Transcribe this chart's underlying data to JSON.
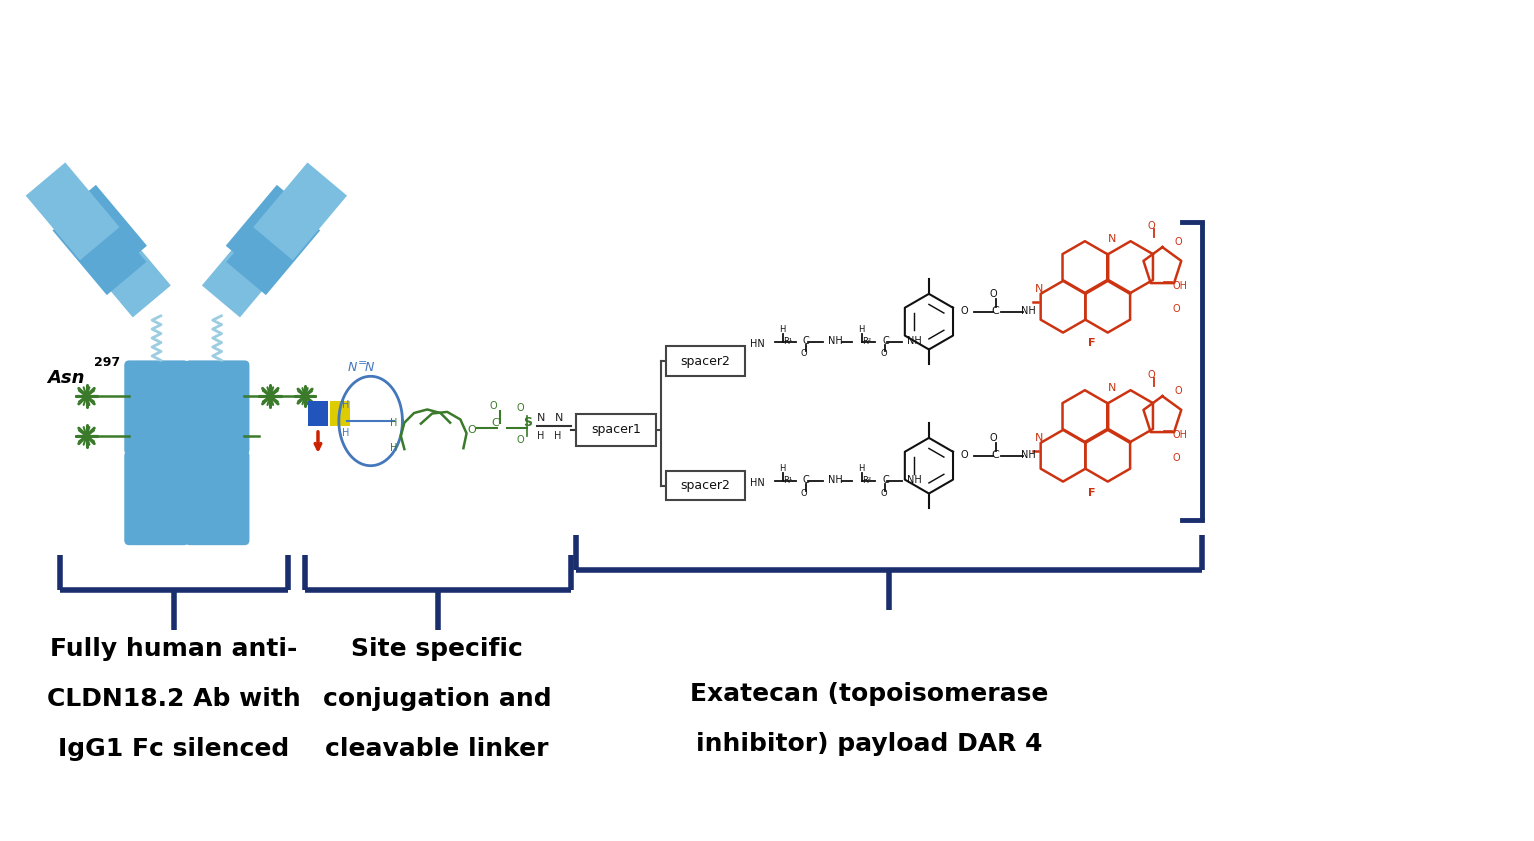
{
  "bg_color": "#ffffff",
  "fig_width": 15.34,
  "fig_height": 8.41,
  "dpi": 100,
  "ab_color": "#5ba8d4",
  "ab_color_dark": "#4a92be",
  "ab_color_light": "#7bbee0",
  "hinge_color": "#a8d4ea",
  "green_color": "#3a7a2a",
  "exc_color": "#cc3311",
  "bracket_color": "#1a2e6e",
  "blue_ring_color": "#4477bb",
  "label1_lines": [
    "Fully human anti-",
    "CLDN18.2 Ab with",
    "IgG1 Fc silenced"
  ],
  "label2_lines": [
    "Site specific",
    "conjugation and",
    "cleavable linker"
  ],
  "label3_lines": [
    "Exatecan (topoisomerase",
    "inhibitor) payload DAR 4"
  ],
  "label_fontsize": 18,
  "asn_fontsize": 13,
  "asn_sup_fontsize": 9
}
